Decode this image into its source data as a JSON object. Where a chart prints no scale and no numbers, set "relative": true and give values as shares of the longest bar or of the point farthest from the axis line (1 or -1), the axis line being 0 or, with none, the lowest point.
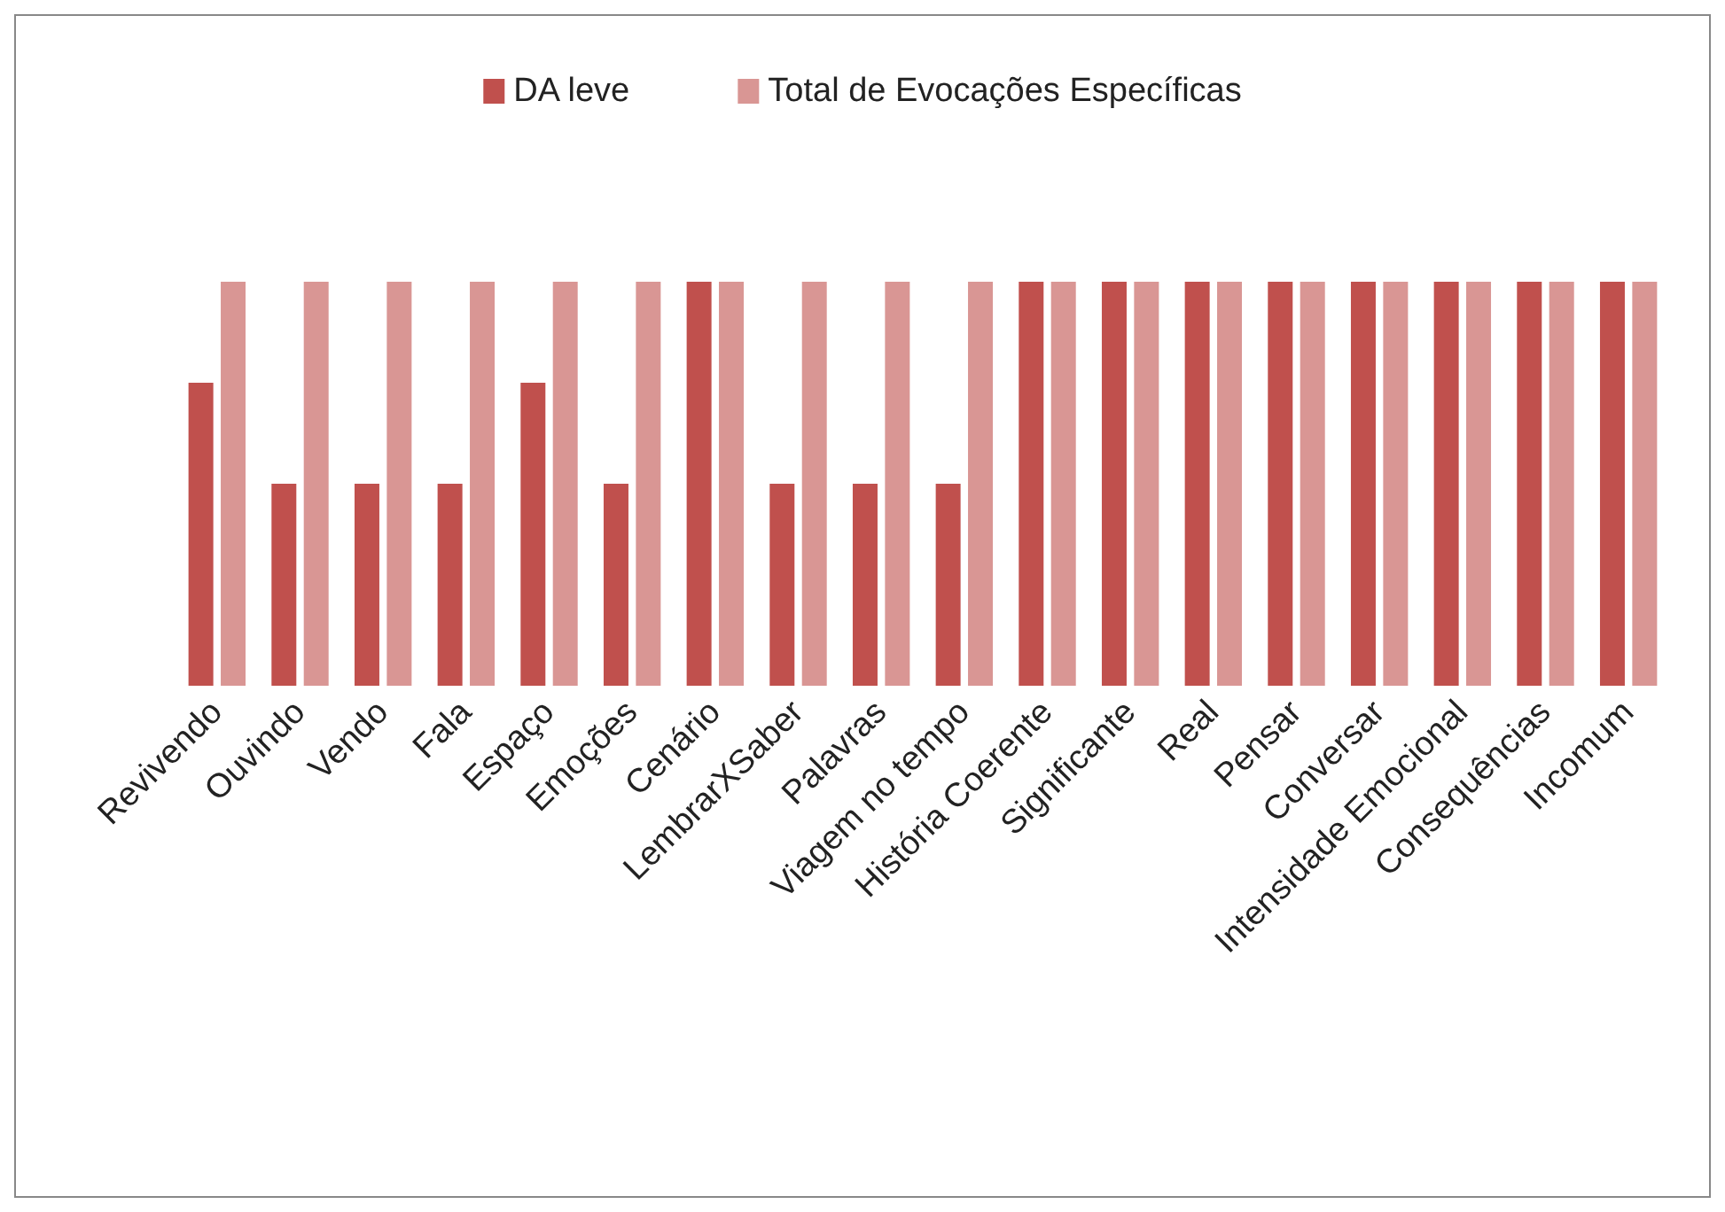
{
  "chart_data": {
    "type": "bar",
    "relative": true,
    "legend": "top",
    "categories": [
      "Revivendo",
      "Ouvindo",
      "Vendo",
      "Fala",
      "Espaço",
      "Emoções",
      "Cenário",
      "LembrarXSaber",
      "Palavras",
      "Viagem no tempo",
      "História Coerente",
      "Significante",
      "Real",
      "Pensar",
      "Conversar",
      "Intensidade Emocional",
      "Consequências",
      "Incomum"
    ],
    "series": [
      {
        "name": "DA leve",
        "color": "#c0504d",
        "values": [
          0.75,
          0.5,
          0.5,
          0.5,
          0.75,
          0.5,
          1,
          0.5,
          0.5,
          0.5,
          1,
          1,
          1,
          1,
          1,
          1,
          1,
          1
        ]
      },
      {
        "name": "Total de Evocações Específicas",
        "color": "#d99694",
        "values": [
          1,
          1,
          1,
          1,
          1,
          1,
          1,
          1,
          1,
          1,
          1,
          1,
          1,
          1,
          1,
          1,
          1,
          1
        ]
      }
    ]
  }
}
